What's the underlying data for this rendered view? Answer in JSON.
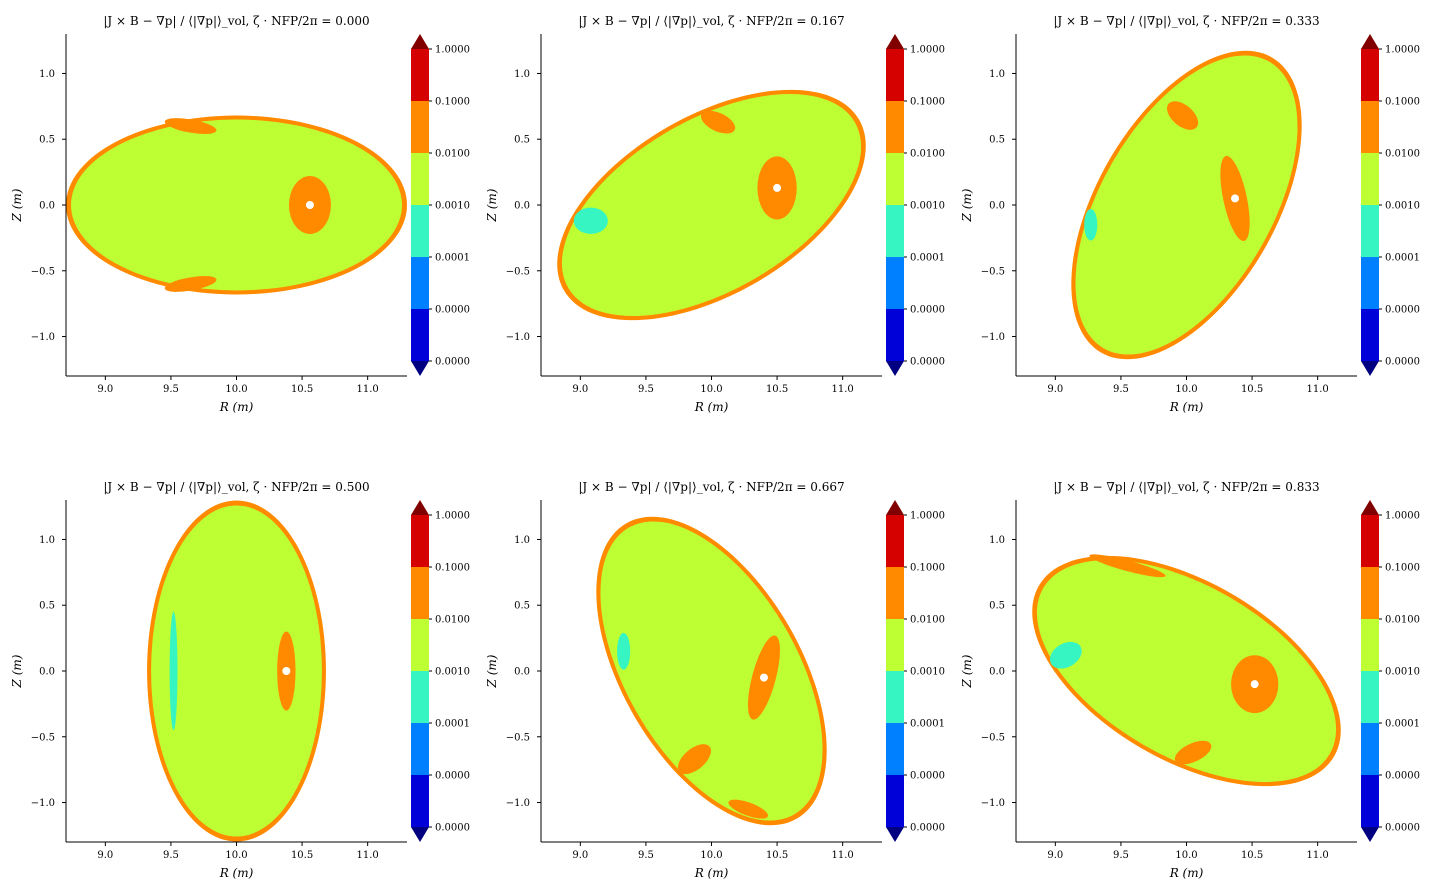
{
  "chart_data": [
    {
      "type": "heatmap",
      "title": "|J × B − ∇p| / ⟨|∇p|⟩_vol, ζ · NFP/2π = 0.000",
      "xlabel": "R (m)",
      "ylabel": "Z (m)",
      "xlim": [
        8.7,
        11.3
      ],
      "ylim": [
        -1.3,
        1.3
      ],
      "xticks": [
        "9.0",
        "9.5",
        "10.0",
        "10.5",
        "11.0"
      ],
      "yticks": [
        "1.0",
        "0.5",
        "0.0",
        "−0.5",
        "−1.0"
      ],
      "shape": {
        "center": [
          10.0,
          0.0
        ],
        "semi_major": 1.3,
        "semi_minor": 0.68,
        "tilt_deg": 0
      },
      "hotspots": [
        {
          "center": [
            10.56,
            0.0
          ],
          "radii": [
            0.16,
            0.22
          ],
          "tilt_deg": 0,
          "level": "0.0100–0.1000"
        },
        {
          "center": [
            9.65,
            0.6
          ],
          "radii": [
            0.2,
            0.05
          ],
          "tilt_deg": -10,
          "level": "0.0100–0.1000"
        },
        {
          "center": [
            9.65,
            -0.6
          ],
          "radii": [
            0.2,
            0.05
          ],
          "tilt_deg": 10,
          "level": "0.0100–0.1000"
        }
      ]
    },
    {
      "type": "heatmap",
      "title": "|J × B − ∇p| / ⟨|∇p|⟩_vol, ζ · NFP/2π = 0.167",
      "xlabel": "R (m)",
      "ylabel": "Z (m)",
      "xlim": [
        8.7,
        11.3
      ],
      "ylim": [
        -1.3,
        1.3
      ],
      "xticks": [
        "9.0",
        "9.5",
        "10.0",
        "10.5",
        "11.0"
      ],
      "yticks": [
        "1.0",
        "0.5",
        "0.0",
        "−0.5",
        "−1.0"
      ],
      "shape": {
        "center": [
          10.0,
          0.0
        ],
        "semi_major": 1.3,
        "semi_minor": 0.68,
        "tilt_deg": 30
      },
      "hotspots": [
        {
          "center": [
            10.5,
            0.13
          ],
          "radii": [
            0.15,
            0.24
          ],
          "tilt_deg": 0,
          "level": "0.0100–0.1000"
        },
        {
          "center": [
            10.05,
            0.63
          ],
          "radii": [
            0.14,
            0.07
          ],
          "tilt_deg": -25,
          "level": "0.0100–0.1000"
        },
        {
          "center": [
            9.08,
            -0.12
          ],
          "radii": [
            0.13,
            0.1
          ],
          "tilt_deg": 0,
          "level": "0.0001–0.0010"
        }
      ]
    },
    {
      "type": "heatmap",
      "title": "|J × B − ∇p| / ⟨|∇p|⟩_vol, ζ · NFP/2π = 0.333",
      "xlabel": "R (m)",
      "ylabel": "Z (m)",
      "xlim": [
        8.7,
        11.3
      ],
      "ylim": [
        -1.3,
        1.3
      ],
      "xticks": [
        "9.0",
        "9.5",
        "10.0",
        "10.5",
        "11.0"
      ],
      "yticks": [
        "1.0",
        "0.5",
        "0.0",
        "−0.5",
        "−1.0"
      ],
      "shape": {
        "center": [
          10.0,
          0.0
        ],
        "semi_major": 1.3,
        "semi_minor": 0.68,
        "tilt_deg": 60
      },
      "hotspots": [
        {
          "center": [
            10.37,
            0.05
          ],
          "radii": [
            0.09,
            0.33
          ],
          "tilt_deg": 12,
          "level": "0.0100–0.1000"
        },
        {
          "center": [
            9.97,
            0.68
          ],
          "radii": [
            0.14,
            0.08
          ],
          "tilt_deg": -40,
          "level": "0.0100–0.1000"
        },
        {
          "center": [
            9.27,
            -0.15
          ],
          "radii": [
            0.05,
            0.12
          ],
          "tilt_deg": 0,
          "level": "0.0001–0.0010"
        }
      ]
    },
    {
      "type": "heatmap",
      "title": "|J × B − ∇p| / ⟨|∇p|⟩_vol, ζ · NFP/2π = 0.500",
      "xlabel": "R (m)",
      "ylabel": "Z (m)",
      "xlim": [
        8.7,
        11.3
      ],
      "ylim": [
        -1.3,
        1.3
      ],
      "xticks": [
        "9.0",
        "9.5",
        "10.0",
        "10.5",
        "11.0"
      ],
      "yticks": [
        "1.0",
        "0.5",
        "0.0",
        "−0.5",
        "−1.0"
      ],
      "shape": {
        "center": [
          10.0,
          0.0
        ],
        "semi_major": 1.3,
        "semi_minor": 0.68,
        "tilt_deg": 90
      },
      "hotspots": [
        {
          "center": [
            10.38,
            0.0
          ],
          "radii": [
            0.07,
            0.3
          ],
          "tilt_deg": 0,
          "level": "0.0100–0.1000"
        },
        {
          "center": [
            9.52,
            0.0
          ],
          "radii": [
            0.03,
            0.45
          ],
          "tilt_deg": 0,
          "level": "0.0001–0.0010"
        }
      ]
    },
    {
      "type": "heatmap",
      "title": "|J × B − ∇p| / ⟨|∇p|⟩_vol, ζ · NFP/2π = 0.667",
      "xlabel": "R (m)",
      "ylabel": "Z (m)",
      "xlim": [
        8.7,
        11.3
      ],
      "ylim": [
        -1.3,
        1.3
      ],
      "xticks": [
        "9.0",
        "9.5",
        "10.0",
        "10.5",
        "11.0"
      ],
      "yticks": [
        "1.0",
        "0.5",
        "0.0",
        "−0.5",
        "−1.0"
      ],
      "shape": {
        "center": [
          10.0,
          0.0
        ],
        "semi_major": 1.3,
        "semi_minor": 0.68,
        "tilt_deg": 120
      },
      "hotspots": [
        {
          "center": [
            10.4,
            -0.05
          ],
          "radii": [
            0.09,
            0.33
          ],
          "tilt_deg": -15,
          "level": "0.0100–0.1000"
        },
        {
          "center": [
            9.87,
            -0.67
          ],
          "radii": [
            0.15,
            0.08
          ],
          "tilt_deg": 40,
          "level": "0.0100–0.1000"
        },
        {
          "center": [
            10.28,
            -1.05
          ],
          "radii": [
            0.16,
            0.05
          ],
          "tilt_deg": -20,
          "level": "0.0100–0.1000"
        },
        {
          "center": [
            9.33,
            0.15
          ],
          "radii": [
            0.05,
            0.14
          ],
          "tilt_deg": 0,
          "level": "0.0001–0.0010"
        }
      ]
    },
    {
      "type": "heatmap",
      "title": "|J × B − ∇p| / ⟨|∇p|⟩_vol, ζ · NFP/2π = 0.833",
      "xlabel": "R (m)",
      "ylabel": "Z (m)",
      "xlim": [
        8.7,
        11.3
      ],
      "ylim": [
        -1.3,
        1.3
      ],
      "xticks": [
        "9.0",
        "9.5",
        "10.0",
        "10.5",
        "11.0"
      ],
      "yticks": [
        "1.0",
        "0.5",
        "0.0",
        "−0.5",
        "−1.0"
      ],
      "shape": {
        "center": [
          10.0,
          0.0
        ],
        "semi_major": 1.3,
        "semi_minor": 0.68,
        "tilt_deg": 150
      },
      "hotspots": [
        {
          "center": [
            10.52,
            -0.1
          ],
          "radii": [
            0.18,
            0.22
          ],
          "tilt_deg": 0,
          "level": "0.0100–0.1000"
        },
        {
          "center": [
            10.05,
            -0.62
          ],
          "radii": [
            0.15,
            0.07
          ],
          "tilt_deg": 25,
          "level": "0.0100–0.1000"
        },
        {
          "center": [
            9.55,
            0.8
          ],
          "radii": [
            0.3,
            0.04
          ],
          "tilt_deg": -15,
          "level": "0.0100–0.1000"
        },
        {
          "center": [
            9.08,
            0.12
          ],
          "radii": [
            0.13,
            0.09
          ],
          "tilt_deg": 30,
          "level": "0.0001–0.0010"
        }
      ]
    }
  ],
  "colorbar": {
    "ticks": [
      "1.0000",
      "0.1000",
      "0.0100",
      "0.0010",
      "0.0001",
      "0.0000",
      "0.0000"
    ],
    "colors": [
      "#d50000",
      "#ff8a00",
      "#beff33",
      "#36f5c2",
      "#0080ff",
      "#0000d8"
    ],
    "over_color": "#800000",
    "under_color": "#000080",
    "extend": "both"
  },
  "colors": {
    "background_fill": "#beff33",
    "moderate_fill": "#ff8a00",
    "low_fill": "#36f5c2",
    "minimum_fill": "#ffffff"
  }
}
